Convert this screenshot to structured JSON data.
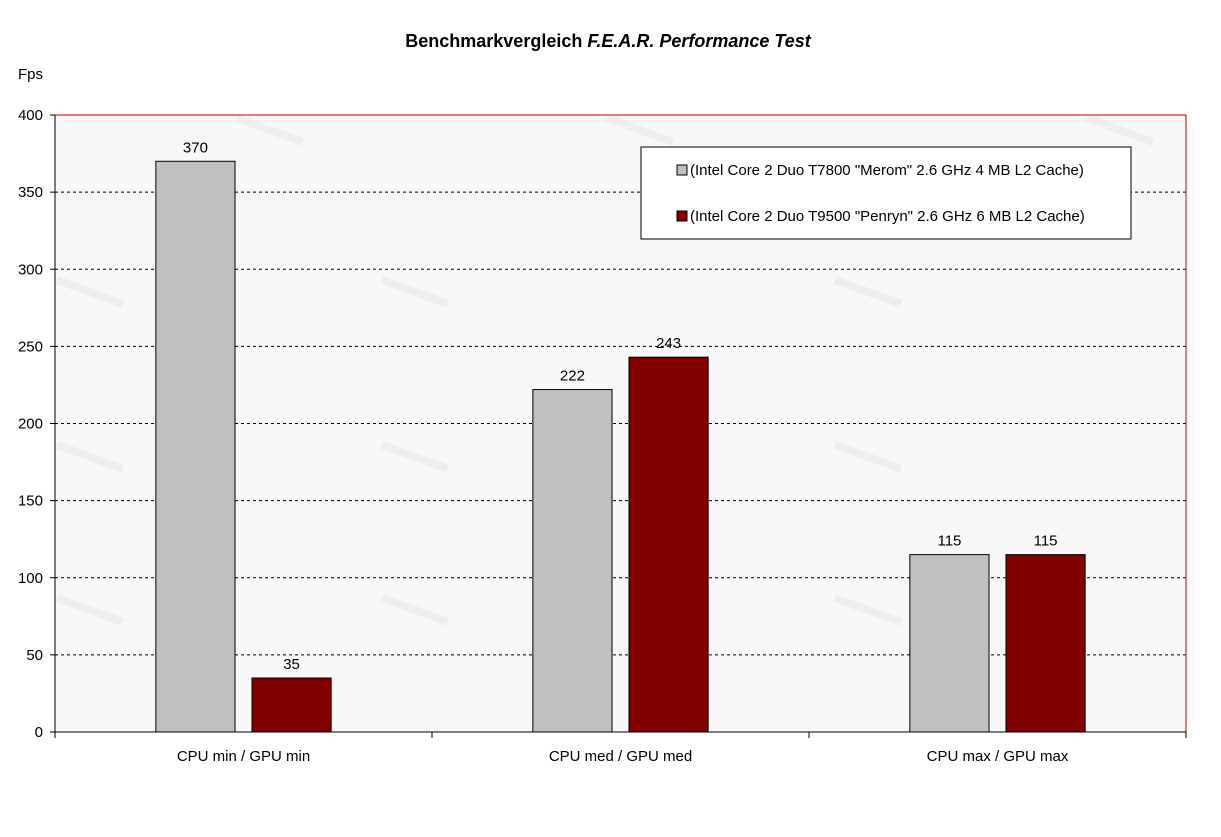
{
  "chart_data": {
    "type": "bar",
    "title_plain": "Benchmarkvergleich ",
    "title_italic": "F.E.A.R. Performance Test",
    "ylabel": "Fps",
    "xlabel": "",
    "ylim": [
      0,
      400
    ],
    "yticks": [
      0,
      50,
      100,
      150,
      200,
      250,
      300,
      350,
      400
    ],
    "grid": true,
    "legend_position": "top-right",
    "categories": [
      "CPU min / GPU min",
      "CPU med / GPU med",
      "CPU max / GPU max"
    ],
    "series": [
      {
        "name": "(Intel Core 2 Duo T7800 \"Merom\" 2.6 GHz 4 MB L2 Cache)",
        "color": "#c0c0c0",
        "values": [
          370,
          222,
          115
        ]
      },
      {
        "name": "(Intel Core 2 Duo T9500 \"Penryn\" 2.6 GHz 6 MB L2 Cache)",
        "color": "#800000",
        "values": [
          35,
          243,
          115
        ]
      }
    ],
    "colors": {
      "plot_border": "#cc0000",
      "plot_background": "#f8f8f8",
      "gridline": "#000000"
    }
  }
}
